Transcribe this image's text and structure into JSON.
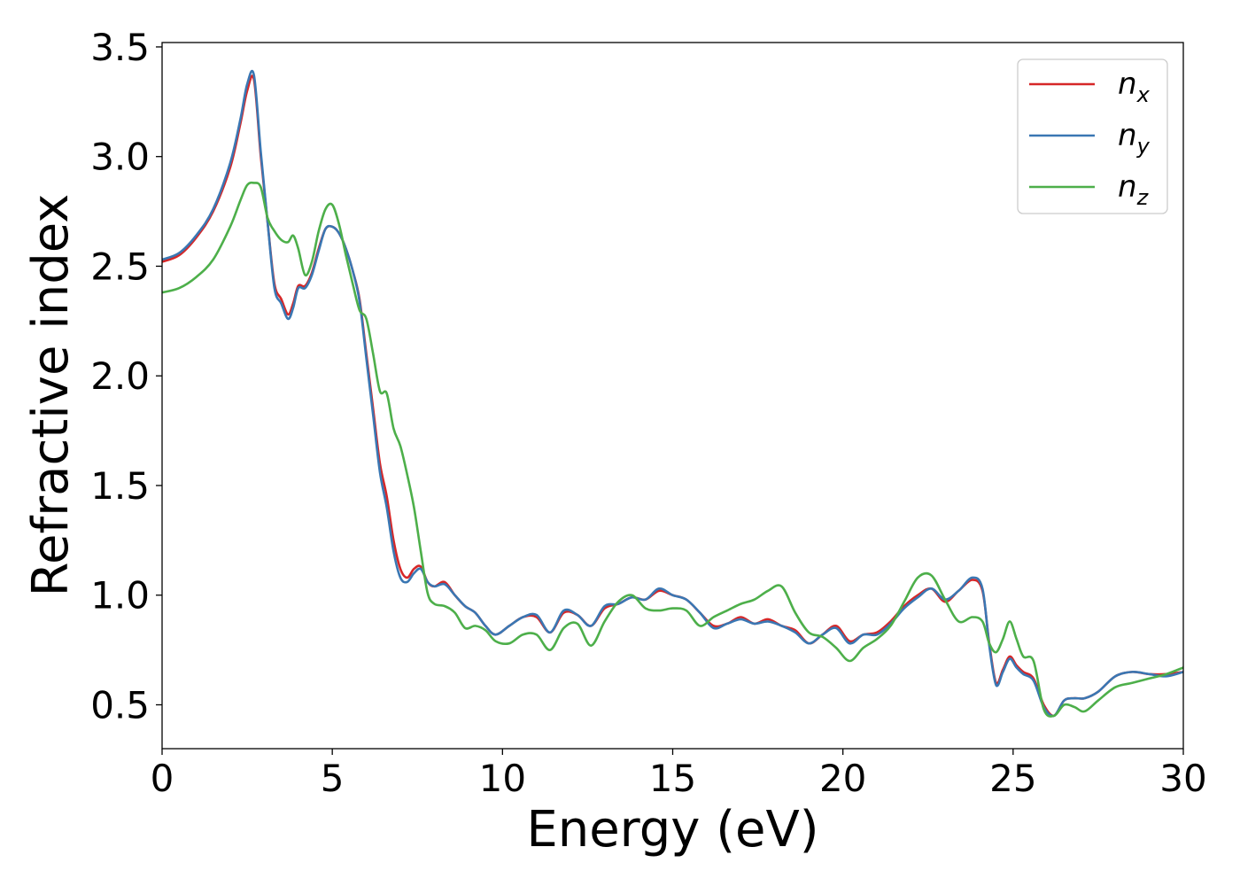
{
  "chart_data": {
    "type": "line",
    "xlabel": "Energy (eV)",
    "ylabel": "Refractive index",
    "xlim": [
      0,
      30
    ],
    "ylim": [
      0.3,
      3.52
    ],
    "xticks": [
      "0",
      "5",
      "10",
      "15",
      "20",
      "25",
      "30"
    ],
    "yticks": [
      "0.5",
      "1.0",
      "1.5",
      "2.0",
      "2.5",
      "3.0",
      "3.5"
    ],
    "grid": false,
    "legend_position": "top-right",
    "series": [
      {
        "name": "n",
        "subscript": "x",
        "color": "#d62728",
        "x": [
          0,
          0.5,
          1,
          1.5,
          2,
          2.3,
          2.5,
          2.7,
          2.9,
          3.1,
          3.3,
          3.5,
          3.7,
          3.85,
          4,
          4.2,
          4.4,
          4.6,
          4.8,
          5,
          5.2,
          5.4,
          5.6,
          5.8,
          6,
          6.2,
          6.4,
          6.6,
          6.8,
          7,
          7.2,
          7.4,
          7.6,
          7.8,
          8,
          8.3,
          8.6,
          8.9,
          9.2,
          9.5,
          9.8,
          10.2,
          10.6,
          11,
          11.4,
          11.8,
          12.2,
          12.6,
          13,
          13.4,
          13.8,
          14.2,
          14.6,
          15,
          15.4,
          15.8,
          16.2,
          16.6,
          17,
          17.4,
          17.8,
          18.2,
          18.6,
          19,
          19.4,
          19.8,
          20.2,
          20.6,
          21,
          21.4,
          21.8,
          22.2,
          22.6,
          23,
          23.4,
          23.8,
          24.1,
          24.3,
          24.5,
          24.7,
          24.9,
          25.1,
          25.3,
          25.6,
          25.9,
          26.2,
          26.5,
          26.8,
          27.1,
          27.5,
          28,
          28.5,
          29,
          29.5,
          30
        ],
        "y": [
          2.52,
          2.55,
          2.63,
          2.75,
          2.95,
          3.15,
          3.3,
          3.35,
          3.0,
          2.7,
          2.42,
          2.35,
          2.28,
          2.33,
          2.41,
          2.41,
          2.47,
          2.58,
          2.67,
          2.68,
          2.65,
          2.58,
          2.48,
          2.35,
          2.1,
          1.85,
          1.6,
          1.45,
          1.25,
          1.12,
          1.08,
          1.12,
          1.13,
          1.06,
          1.04,
          1.06,
          1.0,
          0.95,
          0.92,
          0.86,
          0.82,
          0.86,
          0.9,
          0.9,
          0.83,
          0.92,
          0.91,
          0.86,
          0.94,
          0.96,
          0.99,
          0.98,
          1.02,
          1.0,
          0.98,
          0.92,
          0.86,
          0.87,
          0.9,
          0.87,
          0.89,
          0.86,
          0.84,
          0.78,
          0.82,
          0.86,
          0.79,
          0.82,
          0.83,
          0.88,
          0.95,
          1.0,
          1.03,
          0.97,
          1.02,
          1.07,
          1.02,
          0.78,
          0.6,
          0.66,
          0.72,
          0.68,
          0.65,
          0.62,
          0.5,
          0.45,
          0.52,
          0.53,
          0.53,
          0.56,
          0.63,
          0.65,
          0.64,
          0.64,
          0.65
        ]
      },
      {
        "name": "n",
        "subscript": "y",
        "color": "#3a77b3",
        "x": [
          0,
          0.5,
          1,
          1.5,
          2,
          2.3,
          2.5,
          2.7,
          2.9,
          3.1,
          3.3,
          3.5,
          3.7,
          3.85,
          4,
          4.2,
          4.4,
          4.6,
          4.8,
          5,
          5.2,
          5.4,
          5.6,
          5.8,
          6,
          6.2,
          6.4,
          6.6,
          6.8,
          7,
          7.2,
          7.4,
          7.6,
          7.8,
          8,
          8.3,
          8.6,
          8.9,
          9.2,
          9.5,
          9.8,
          10.2,
          10.6,
          11,
          11.4,
          11.8,
          12.2,
          12.6,
          13,
          13.4,
          13.8,
          14.2,
          14.6,
          15,
          15.4,
          15.8,
          16.2,
          16.6,
          17,
          17.4,
          17.8,
          18.2,
          18.6,
          19,
          19.4,
          19.8,
          20.2,
          20.6,
          21,
          21.4,
          21.8,
          22.2,
          22.6,
          23,
          23.4,
          23.8,
          24.1,
          24.3,
          24.5,
          24.7,
          24.9,
          25.1,
          25.3,
          25.6,
          25.9,
          26.2,
          26.5,
          26.8,
          27.1,
          27.5,
          28,
          28.5,
          29,
          29.5,
          30
        ],
        "y": [
          2.53,
          2.56,
          2.64,
          2.76,
          2.97,
          3.17,
          3.33,
          3.37,
          3.02,
          2.7,
          2.4,
          2.33,
          2.26,
          2.31,
          2.4,
          2.4,
          2.46,
          2.57,
          2.67,
          2.68,
          2.65,
          2.58,
          2.48,
          2.34,
          2.08,
          1.82,
          1.56,
          1.4,
          1.2,
          1.08,
          1.06,
          1.1,
          1.12,
          1.06,
          1.04,
          1.05,
          1.0,
          0.95,
          0.92,
          0.86,
          0.82,
          0.86,
          0.9,
          0.91,
          0.83,
          0.93,
          0.91,
          0.86,
          0.95,
          0.96,
          0.99,
          0.98,
          1.03,
          1.0,
          0.98,
          0.92,
          0.85,
          0.87,
          0.89,
          0.87,
          0.88,
          0.86,
          0.83,
          0.78,
          0.82,
          0.85,
          0.78,
          0.82,
          0.82,
          0.87,
          0.94,
          0.99,
          1.03,
          0.98,
          1.02,
          1.08,
          1.03,
          0.77,
          0.59,
          0.65,
          0.71,
          0.67,
          0.64,
          0.61,
          0.49,
          0.45,
          0.52,
          0.53,
          0.53,
          0.56,
          0.63,
          0.65,
          0.64,
          0.63,
          0.65
        ]
      },
      {
        "name": "n",
        "subscript": "z",
        "color": "#4daf4a",
        "x": [
          0,
          0.5,
          1,
          1.5,
          2,
          2.3,
          2.5,
          2.7,
          2.9,
          3.1,
          3.3,
          3.5,
          3.7,
          3.85,
          4,
          4.2,
          4.4,
          4.6,
          4.8,
          5,
          5.2,
          5.4,
          5.6,
          5.8,
          6,
          6.2,
          6.4,
          6.6,
          6.8,
          7,
          7.2,
          7.4,
          7.6,
          7.8,
          8,
          8.3,
          8.6,
          8.9,
          9.2,
          9.5,
          9.8,
          10.2,
          10.6,
          11,
          11.4,
          11.8,
          12.2,
          12.6,
          13,
          13.4,
          13.8,
          14.2,
          14.6,
          15,
          15.4,
          15.8,
          16.2,
          16.6,
          17,
          17.4,
          17.8,
          18.2,
          18.6,
          19,
          19.4,
          19.8,
          20.2,
          20.6,
          21,
          21.4,
          21.8,
          22.2,
          22.6,
          23,
          23.4,
          23.8,
          24.1,
          24.3,
          24.5,
          24.7,
          24.9,
          25.1,
          25.3,
          25.6,
          25.9,
          26.2,
          26.5,
          26.8,
          27.1,
          27.5,
          28,
          28.5,
          29,
          29.5,
          30
        ],
        "y": [
          2.38,
          2.4,
          2.45,
          2.53,
          2.68,
          2.8,
          2.87,
          2.88,
          2.86,
          2.72,
          2.66,
          2.62,
          2.61,
          2.64,
          2.58,
          2.46,
          2.52,
          2.66,
          2.76,
          2.78,
          2.69,
          2.55,
          2.42,
          2.3,
          2.26,
          2.1,
          1.93,
          1.92,
          1.76,
          1.68,
          1.55,
          1.4,
          1.2,
          1.01,
          0.96,
          0.95,
          0.92,
          0.85,
          0.86,
          0.84,
          0.79,
          0.78,
          0.82,
          0.82,
          0.75,
          0.85,
          0.87,
          0.77,
          0.88,
          0.97,
          1.0,
          0.94,
          0.93,
          0.94,
          0.93,
          0.86,
          0.9,
          0.93,
          0.96,
          0.98,
          1.02,
          1.04,
          0.92,
          0.83,
          0.81,
          0.76,
          0.7,
          0.76,
          0.8,
          0.86,
          0.97,
          1.08,
          1.09,
          0.98,
          0.88,
          0.9,
          0.88,
          0.78,
          0.74,
          0.8,
          0.88,
          0.8,
          0.72,
          0.7,
          0.48,
          0.45,
          0.5,
          0.49,
          0.47,
          0.52,
          0.58,
          0.6,
          0.62,
          0.64,
          0.67
        ]
      }
    ]
  }
}
